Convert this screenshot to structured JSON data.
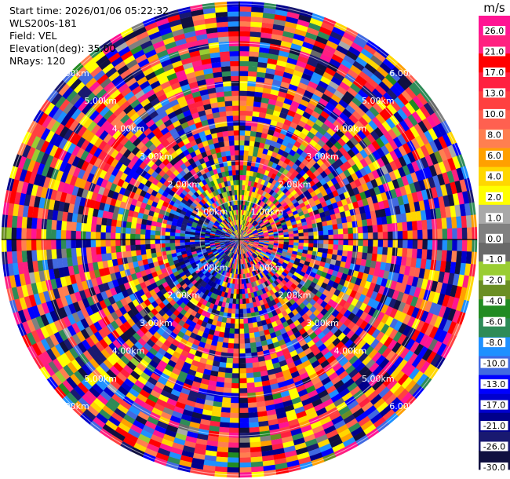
{
  "header": {
    "start_time": "Start time: 2026/01/06 05:22:32",
    "instrument": "WLS200s-181",
    "field": "Field: VEL",
    "elevation": "Elevation(deg): 35.00",
    "nrays": "NRays: 120"
  },
  "colorbar": {
    "unit": "m/s",
    "ticks": [
      "26.0",
      "21.0",
      "17.0",
      "13.0",
      "10.0",
      "8.0",
      "6.0",
      "4.0",
      "2.0",
      "1.0",
      "0.0",
      "-1.0",
      "-2.0",
      "-4.0",
      "-6.0",
      "-8.0",
      "-10.0",
      "-13.0",
      "-17.0",
      "-21.0",
      "-26.0",
      "-30.0"
    ],
    "colors": [
      "#ff1493",
      "#ff2080",
      "#ff0000",
      "#ff2040",
      "#ff4040",
      "#ff6050",
      "#ff7f50",
      "#ffa000",
      "#ffd700",
      "#ffff00",
      "#a9a9a9",
      "#808080",
      "#696969",
      "#9acd32",
      "#6b8e23",
      "#228b22",
      "#2e8b57",
      "#1e90ff",
      "#4169e1",
      "#0000ff",
      "#0000cd",
      "#00008b",
      "#191970",
      "#101040"
    ]
  },
  "chart_data": {
    "type": "heatmap",
    "title": "",
    "projection": "polar (PPI)",
    "field": "VEL",
    "elevation_deg": 35.0,
    "n_rays": 120,
    "n_gates": 48,
    "range_ring_labels": [
      "1.00km",
      "2.00km",
      "3.00km",
      "4.00km",
      "5.00km",
      "6.00km"
    ],
    "ring_label_angles_deg": [
      45,
      135,
      225,
      315
    ],
    "colorbar_range": [
      -30.0,
      26.0
    ],
    "value_pattern": "highly noisy velocities across the full range; near-range area dominated by blue (negative) values west and green/yellow values north",
    "grid": true
  }
}
